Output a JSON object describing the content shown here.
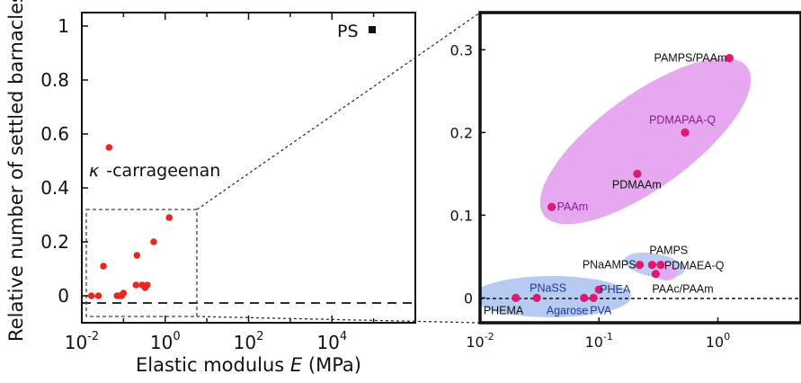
{
  "chart_data": [
    {
      "type": "scatter",
      "xlabel_prefix": "Elastic modulus ",
      "xlabel_var": "E",
      "xlabel_suffix": " (MPa)",
      "ylabel": "Relative number of settled barnacles",
      "x_scale": "log",
      "xlim": [
        0.01,
        1000000
      ],
      "ylim": [
        -0.1,
        1.05
      ],
      "x_ticks": [
        {
          "value": 0.01,
          "base": "10",
          "exp": "-2"
        },
        {
          "value": 1,
          "base": "10",
          "exp": "0"
        },
        {
          "value": 100,
          "base": "10",
          "exp": "2"
        },
        {
          "value": 10000,
          "base": "10",
          "exp": "4"
        }
      ],
      "y_ticks": [
        {
          "value": 0,
          "label": "0"
        },
        {
          "value": 0.2,
          "label": "0.2"
        },
        {
          "value": 0.4,
          "label": "0.4"
        },
        {
          "value": 0.6,
          "label": "0.6"
        },
        {
          "value": 0.8,
          "label": "0.8"
        },
        {
          "value": 1,
          "label": "1"
        }
      ],
      "points": [
        {
          "x": 0.017,
          "y": 0.0
        },
        {
          "x": 0.025,
          "y": 0.0
        },
        {
          "x": 0.033,
          "y": 0.11
        },
        {
          "x": 0.07,
          "y": 0.0
        },
        {
          "x": 0.08,
          "y": 0.0
        },
        {
          "x": 0.09,
          "y": 0.0
        },
        {
          "x": 0.1,
          "y": 0.01
        },
        {
          "x": 0.2,
          "y": 0.04
        },
        {
          "x": 0.21,
          "y": 0.15
        },
        {
          "x": 0.28,
          "y": 0.04
        },
        {
          "x": 0.33,
          "y": 0.03
        },
        {
          "x": 0.37,
          "y": 0.04
        },
        {
          "x": 0.53,
          "y": 0.2
        },
        {
          "x": 1.25,
          "y": 0.29
        },
        {
          "x": 0.045,
          "y": 0.55
        }
      ],
      "annotations": [
        {
          "label": "PS",
          "x": 12000,
          "y": 1.0
        },
        {
          "label_greek": "κ",
          "label": "-carrageenan",
          "x": 0.045,
          "y": 0.55
        }
      ],
      "zoom_box": {
        "xlim": [
          0.01,
          10
        ],
        "ylim": [
          -0.05,
          0.33
        ]
      }
    },
    {
      "type": "scatter",
      "x_scale": "log",
      "xlim": [
        0.01,
        5
      ],
      "ylim": [
        -0.03,
        0.345
      ],
      "x_ticks": [
        {
          "value": 0.01,
          "base": "10",
          "exp": "-2"
        },
        {
          "value": 0.1,
          "base": "10",
          "exp": "-1"
        },
        {
          "value": 1,
          "base": "10",
          "exp": "0"
        }
      ],
      "y_ticks": [
        {
          "value": 0,
          "label": "0"
        },
        {
          "value": 0.1,
          "label": "0.1"
        },
        {
          "value": 0.2,
          "label": "0.2"
        },
        {
          "value": 0.3,
          "label": "0.3"
        }
      ],
      "points": [
        {
          "label": "PAMPS/PAAm",
          "x": 1.25,
          "y": 0.29
        },
        {
          "label": "PDMAPAA-Q",
          "x": 0.53,
          "y": 0.2
        },
        {
          "label": "PDMAAm",
          "x": 0.21,
          "y": 0.15
        },
        {
          "label": "PAAm",
          "x": 0.04,
          "y": 0.11
        },
        {
          "label": "PNaAMPS",
          "x": 0.22,
          "y": 0.04
        },
        {
          "label": "PAMPS",
          "x": 0.28,
          "y": 0.04
        },
        {
          "label": "PDMAEA-Q",
          "x": 0.33,
          "y": 0.04
        },
        {
          "label": "PAAc/PAAm",
          "x": 0.3,
          "y": 0.029
        },
        {
          "label": "PHEA",
          "x": 0.1,
          "y": 0.01
        },
        {
          "label": "PNaSS",
          "x": 0.03,
          "y": 0.0
        },
        {
          "label": "PHEMA",
          "x": 0.02,
          "y": 0.0
        },
        {
          "label": "Agarose",
          "x": 0.075,
          "y": 0.0
        },
        {
          "label": "PVA",
          "x": 0.09,
          "y": 0.0
        }
      ],
      "colors": {
        "point": "#e0186f",
        "group_high": "#e6a8ef",
        "group_mid": "#bfcdf2",
        "group_low": "#b7caf1",
        "left_point": "#e8281f"
      }
    }
  ]
}
